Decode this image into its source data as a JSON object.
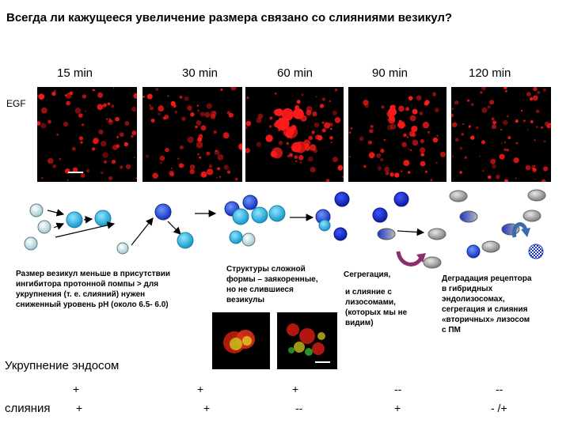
{
  "title": "Всегда ли кажущееся увеличение размера связано со слияниями везикул?",
  "times": [
    "15 min",
    "30 min",
    "60 min",
    "90 min",
    "120 min"
  ],
  "egf_label": "EGF",
  "notes": {
    "size_smaller": [
      "Размер везикул меньше в присутствии",
      "ингибитора протонной помпы > для",
      "укрупнения (т. е. слияний) нужен",
      "сниженный уровень pH (около 6.5- 6.0)"
    ],
    "complex_shape": [
      "Структуры сложной",
      "формы – заякоренные,",
      "но не слившиеся",
      "везикулы"
    ],
    "segregation": "Сегрегация,",
    "fusion_lyso": [
      "и слияние с",
      "лизосомами,",
      "(которых мы не",
      "видим)"
    ],
    "degradation": [
      "Деградация рецептора",
      "в гибридных",
      "эндолизосомах,",
      "сегрегация и слияния",
      "«вторичных» лизосом",
      "с ПМ"
    ]
  },
  "row_labels": {
    "enlargement": "Укрупнение эндосом",
    "fusions": "слияния"
  },
  "row1_signs": [
    "+",
    "+",
    "+",
    "--",
    "--"
  ],
  "row2_signs": [
    "+",
    "+",
    "--",
    "+",
    "- /+"
  ],
  "colors": {
    "light_cyan": "#bfe3e6",
    "cyan": "#2ab7e8",
    "blue": "#1d4fd6",
    "dark_blue": "#1122bb",
    "gray": "#9a9a9a",
    "puncta": "#ff1a1a",
    "arrow_purple": "#8a2e6e",
    "arrow_blue": "#3a6aa8"
  }
}
